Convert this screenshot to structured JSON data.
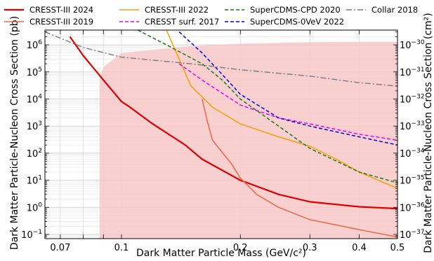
{
  "chart_data": {
    "type": "line",
    "title": "",
    "xlabel": "Dark Matter Particle Mass (GeV/c²)",
    "ylabel": "Dark Matter Particle-Nucleon Cross Section (pb)",
    "ylabel_right": "Dark Matter Particle-Nucleon Cross Section (cm²)",
    "x_scale": "log",
    "y_scale": "log",
    "xlim": [
      0.064,
      0.5
    ],
    "ylim": [
      0.07,
      3500000
    ],
    "grid": true,
    "legend_position": "top",
    "x_ticks": [
      {
        "value": 0.07,
        "label": "0.07"
      },
      {
        "value": 0.1,
        "label": "0.1"
      },
      {
        "value": 0.2,
        "label": "0.2"
      },
      {
        "value": 0.3,
        "label": "0.3"
      },
      {
        "value": 0.4,
        "label": "0.4"
      },
      {
        "value": 0.5,
        "label": "0.5"
      }
    ],
    "y_ticks": [
      {
        "value": 0.1,
        "base": "10",
        "exp": "−1"
      },
      {
        "value": 1,
        "base": "10",
        "exp": "0"
      },
      {
        "value": 10,
        "base": "10",
        "exp": "1"
      },
      {
        "value": 100,
        "base": "10",
        "exp": "2"
      },
      {
        "value": 1000,
        "base": "10",
        "exp": "3"
      },
      {
        "value": 10000,
        "base": "10",
        "exp": "4"
      },
      {
        "value": 100000,
        "base": "10",
        "exp": "5"
      },
      {
        "value": 1000000,
        "base": "10",
        "exp": "6"
      }
    ],
    "y2_ticks": [
      {
        "value": 0.1,
        "base": "10",
        "exp": "−37"
      },
      {
        "value": 1,
        "base": "10",
        "exp": "−36"
      },
      {
        "value": 10,
        "base": "10",
        "exp": "−35"
      },
      {
        "value": 100,
        "base": "10",
        "exp": "−34"
      },
      {
        "value": 1000,
        "base": "10",
        "exp": "−33"
      },
      {
        "value": 10000,
        "base": "10",
        "exp": "−32"
      },
      {
        "value": 100000,
        "base": "10",
        "exp": "−31"
      },
      {
        "value": 1000000,
        "base": "10",
        "exp": "−30"
      }
    ],
    "excluded_region": {
      "color": "#f8c8c8",
      "upper": [
        [
          0.088,
          60000
        ],
        [
          0.09,
          150000
        ],
        [
          0.1,
          500000
        ],
        [
          0.15,
          900000
        ],
        [
          0.2,
          1100000
        ],
        [
          0.3,
          1250000
        ],
        [
          0.4,
          1300000
        ],
        [
          0.5,
          1300000
        ]
      ]
    },
    "series": [
      {
        "name": "CRESST-III 2024",
        "color": "#e00000",
        "dash": "solid",
        "width": 2.2,
        "points": [
          [
            0.074,
            2000000
          ],
          [
            0.08,
            400000
          ],
          [
            0.09,
            50000
          ],
          [
            0.1,
            8000
          ],
          [
            0.105,
            5000
          ],
          [
            0.12,
            1200
          ],
          [
            0.14,
            280
          ],
          [
            0.145,
            200
          ],
          [
            0.16,
            60
          ],
          [
            0.2,
            10
          ],
          [
            0.25,
            3
          ],
          [
            0.3,
            1.6
          ],
          [
            0.4,
            1.05
          ],
          [
            0.5,
            0.9
          ]
        ]
      },
      {
        "name": "CRESST-III 2019",
        "color": "#ee6545",
        "dash": "solid",
        "width": 1.5,
        "points": [
          [
            0.16,
            10000
          ],
          [
            0.165,
            1500
          ],
          [
            0.17,
            300
          ],
          [
            0.19,
            40
          ],
          [
            0.2,
            12
          ],
          [
            0.22,
            3
          ],
          [
            0.25,
            1
          ],
          [
            0.3,
            0.35
          ],
          [
            0.4,
            0.15
          ],
          [
            0.5,
            0.08
          ]
        ]
      },
      {
        "name": "CRESST-III 2022",
        "color": "#f5a000",
        "dash": "solid",
        "width": 1.5,
        "points": [
          [
            0.13,
            3500000
          ],
          [
            0.14,
            300000
          ],
          [
            0.15,
            30000
          ],
          [
            0.17,
            5000
          ],
          [
            0.2,
            1200
          ],
          [
            0.25,
            400
          ],
          [
            0.3,
            180
          ],
          [
            0.35,
            60
          ],
          [
            0.4,
            20
          ],
          [
            0.5,
            5
          ]
        ]
      },
      {
        "name": "CRESST surf. 2017",
        "color": "#ee00ee",
        "dash": "dashed",
        "width": 1.5,
        "points": [
          [
            0.14,
            200000
          ],
          [
            0.16,
            50000
          ],
          [
            0.2,
            6000
          ],
          [
            0.25,
            2000
          ],
          [
            0.3,
            1200
          ],
          [
            0.4,
            500
          ],
          [
            0.5,
            300
          ]
        ]
      },
      {
        "name": "SuperCDMS-CPD 2020",
        "color": "#1a7a1a",
        "dash": "dashed",
        "width": 1.5,
        "points": [
          [
            0.11,
            3500000
          ],
          [
            0.13,
            1000000
          ],
          [
            0.16,
            200000
          ],
          [
            0.18,
            50000
          ],
          [
            0.2,
            10000
          ],
          [
            0.25,
            1000
          ],
          [
            0.3,
            150
          ],
          [
            0.4,
            20
          ],
          [
            0.5,
            8
          ]
        ]
      },
      {
        "name": "SuperCDMS-0VeV 2022",
        "color": "#0000dd",
        "dash": "dashed",
        "width": 1.5,
        "points": [
          [
            0.14,
            3000000
          ],
          [
            0.16,
            500000
          ],
          [
            0.18,
            80000
          ],
          [
            0.2,
            15000
          ],
          [
            0.25,
            2000
          ],
          [
            0.3,
            1000
          ],
          [
            0.4,
            400
          ],
          [
            0.5,
            200
          ]
        ]
      },
      {
        "name": "Collar 2018",
        "color": "#7f7f7f",
        "dash": "dashdot",
        "width": 1.5,
        "points": [
          [
            0.064,
            3000000
          ],
          [
            0.08,
            800000
          ],
          [
            0.1,
            350000
          ],
          [
            0.15,
            200000
          ],
          [
            0.2,
            120000
          ],
          [
            0.3,
            70000
          ],
          [
            0.4,
            40000
          ],
          [
            0.5,
            30000
          ]
        ]
      }
    ]
  }
}
